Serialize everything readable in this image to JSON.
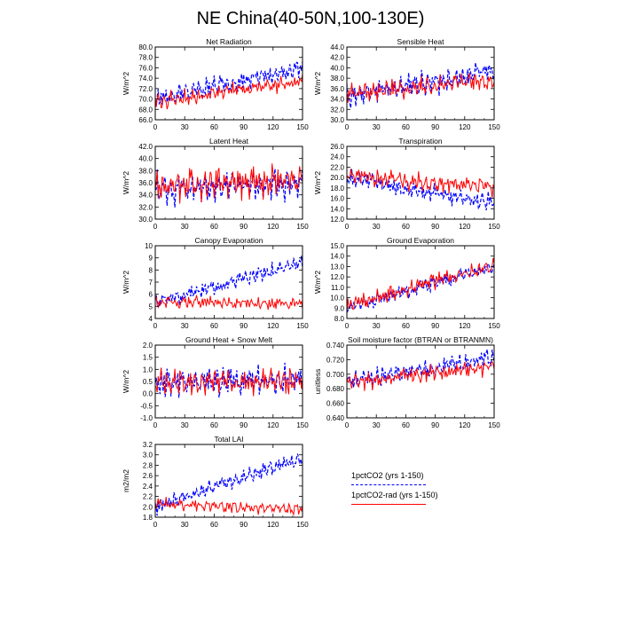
{
  "figure": {
    "title": "NE China(40-50N,100-130E)"
  },
  "legend": {
    "items": [
      {
        "label": "1pctCO2 (yrs 1-150)",
        "color": "#0000ff",
        "style": "dashed"
      },
      {
        "label": "1pctCO2-rad (yrs 1-150)",
        "color": "#ff0000",
        "style": "solid"
      }
    ]
  },
  "chart_data": [
    {
      "type": "line",
      "title": "Net Radiation",
      "ylabel": "W/m^2",
      "xlim": [
        0,
        150
      ],
      "xticks": [
        0,
        30,
        60,
        90,
        120,
        150
      ],
      "ylim": [
        66,
        80
      ],
      "yticks": [
        "66.0",
        "68.0",
        "70.0",
        "72.0",
        "74.0",
        "76.0",
        "78.0",
        "80.0"
      ],
      "series": [
        {
          "name": "1pctCO2 (yrs 1-150)",
          "color": "#0000ff",
          "style": "dashed",
          "start": 70.0,
          "end": 76.0,
          "amp": 1.4,
          "noise": 1.1,
          "seed": 11
        },
        {
          "name": "1pctCO2-rad (yrs 1-150)",
          "color": "#ff0000",
          "style": "solid",
          "start": 69.5,
          "end": 73.5,
          "amp": 1.1,
          "noise": 0.9,
          "seed": 12
        }
      ]
    },
    {
      "type": "line",
      "title": "Sensible Heat",
      "ylabel": "W/m^2",
      "xlim": [
        0,
        150
      ],
      "xticks": [
        0,
        30,
        60,
        90,
        120,
        150
      ],
      "ylim": [
        30,
        44
      ],
      "yticks": [
        "30.0",
        "32.0",
        "34.0",
        "36.0",
        "38.0",
        "40.0",
        "42.0",
        "44.0"
      ],
      "series": [
        {
          "name": "1pctCO2 (yrs 1-150)",
          "color": "#0000ff",
          "style": "dashed",
          "start": 34.5,
          "end": 39.5,
          "amp": 2.0,
          "noise": 1.3,
          "seed": 21
        },
        {
          "name": "1pctCO2-rad (yrs 1-150)",
          "color": "#ff0000",
          "style": "solid",
          "start": 35.0,
          "end": 37.5,
          "amp": 1.5,
          "noise": 1.0,
          "seed": 22
        }
      ]
    },
    {
      "type": "line",
      "title": "Latent Heat",
      "ylabel": "W/m^2",
      "xlim": [
        0,
        150
      ],
      "xticks": [
        0,
        30,
        60,
        90,
        120,
        150
      ],
      "ylim": [
        30,
        42
      ],
      "yticks": [
        "30.0",
        "32.0",
        "34.0",
        "36.0",
        "38.0",
        "40.0",
        "42.0"
      ],
      "series": [
        {
          "name": "1pctCO2 (yrs 1-150)",
          "color": "#0000ff",
          "style": "dashed",
          "start": 35.0,
          "end": 36.0,
          "amp": 2.0,
          "noise": 1.4,
          "seed": 31
        },
        {
          "name": "1pctCO2-rad (yrs 1-150)",
          "color": "#ff0000",
          "style": "solid",
          "start": 35.5,
          "end": 36.5,
          "amp": 2.2,
          "noise": 1.3,
          "seed": 32
        }
      ]
    },
    {
      "type": "line",
      "title": "Transpiration",
      "ylabel": "W/m^2",
      "xlim": [
        0,
        150
      ],
      "xticks": [
        0,
        30,
        60,
        90,
        120,
        150
      ],
      "ylim": [
        12,
        26
      ],
      "yticks": [
        "12.0",
        "14.0",
        "16.0",
        "18.0",
        "20.0",
        "22.0",
        "24.0",
        "26.0"
      ],
      "series": [
        {
          "name": "1pctCO2 (yrs 1-150)",
          "color": "#0000ff",
          "style": "dashed",
          "start": 20.0,
          "end": 15.0,
          "amp": 1.3,
          "noise": 1.0,
          "seed": 41
        },
        {
          "name": "1pctCO2-rad (yrs 1-150)",
          "color": "#ff0000",
          "style": "solid",
          "start": 20.5,
          "end": 18.0,
          "amp": 1.4,
          "noise": 1.0,
          "seed": 42
        }
      ]
    },
    {
      "type": "line",
      "title": "Canopy Evaporation",
      "ylabel": "W/m^2",
      "xlim": [
        0,
        150
      ],
      "xticks": [
        0,
        30,
        60,
        90,
        120,
        150
      ],
      "ylim": [
        4,
        10
      ],
      "yticks": [
        "4",
        "5",
        "6",
        "7",
        "8",
        "9",
        "10"
      ],
      "series": [
        {
          "name": "1pctCO2 (yrs 1-150)",
          "color": "#0000ff",
          "style": "dashed",
          "start": 5.3,
          "end": 8.6,
          "amp": 0.45,
          "noise": 0.35,
          "seed": 51
        },
        {
          "name": "1pctCO2-rad (yrs 1-150)",
          "color": "#ff0000",
          "style": "solid",
          "start": 5.4,
          "end": 5.2,
          "amp": 0.35,
          "noise": 0.3,
          "seed": 52
        }
      ]
    },
    {
      "type": "line",
      "title": "Ground Evaporation",
      "ylabel": "W/m^2",
      "xlim": [
        0,
        150
      ],
      "xticks": [
        0,
        30,
        60,
        90,
        120,
        150
      ],
      "ylim": [
        8,
        15
      ],
      "yticks": [
        "8.0",
        "9.0",
        "10.0",
        "11.0",
        "12.0",
        "13.0",
        "14.0",
        "15.0"
      ],
      "series": [
        {
          "name": "1pctCO2 (yrs 1-150)",
          "color": "#0000ff",
          "style": "dashed",
          "start": 9.0,
          "end": 13.0,
          "amp": 0.5,
          "noise": 0.4,
          "seed": 61
        },
        {
          "name": "1pctCO2-rad (yrs 1-150)",
          "color": "#ff0000",
          "style": "solid",
          "start": 9.2,
          "end": 13.2,
          "amp": 0.55,
          "noise": 0.45,
          "seed": 62
        }
      ]
    },
    {
      "type": "line",
      "title": "Ground Heat + Snow Melt",
      "ylabel": "W/m^2",
      "xlim": [
        0,
        150
      ],
      "xticks": [
        0,
        30,
        60,
        90,
        120,
        150
      ],
      "ylim": [
        -1.0,
        2.0
      ],
      "yticks": [
        "-1.0",
        "-0.5",
        "0.0",
        "0.5",
        "1.0",
        "1.5",
        "2.0"
      ],
      "series": [
        {
          "name": "1pctCO2 (yrs 1-150)",
          "color": "#0000ff",
          "style": "dashed",
          "start": 0.5,
          "end": 0.5,
          "amp": 0.45,
          "noise": 0.35,
          "seed": 71
        },
        {
          "name": "1pctCO2-rad (yrs 1-150)",
          "color": "#ff0000",
          "style": "solid",
          "start": 0.5,
          "end": 0.5,
          "amp": 0.45,
          "noise": 0.3,
          "seed": 72
        }
      ]
    },
    {
      "type": "line",
      "title": "Soil moisture factor (BTRAN or BTRANMN)",
      "ylabel": "unitless",
      "xlim": [
        0,
        150
      ],
      "xticks": [
        0,
        30,
        60,
        90,
        120,
        150
      ],
      "ylim": [
        0.64,
        0.74
      ],
      "yticks": [
        "0.640",
        "0.660",
        "0.680",
        "0.700",
        "0.720",
        "0.740"
      ],
      "series": [
        {
          "name": "1pctCO2 (yrs 1-150)",
          "color": "#0000ff",
          "style": "dashed",
          "start": 0.69,
          "end": 0.722,
          "amp": 0.01,
          "noise": 0.007,
          "seed": 81
        },
        {
          "name": "1pctCO2-rad (yrs 1-150)",
          "color": "#ff0000",
          "style": "solid",
          "start": 0.688,
          "end": 0.71,
          "amp": 0.009,
          "noise": 0.006,
          "seed": 82
        }
      ]
    },
    {
      "type": "line",
      "title": "Total LAI",
      "ylabel": "m2/m2",
      "xlim": [
        0,
        150
      ],
      "xticks": [
        0,
        30,
        60,
        90,
        120,
        150
      ],
      "ylim": [
        1.8,
        3.2
      ],
      "yticks": [
        "1.8",
        "2.0",
        "2.2",
        "2.4",
        "2.6",
        "2.8",
        "3.0",
        "3.2"
      ],
      "series": [
        {
          "name": "1pctCO2 (yrs 1-150)",
          "color": "#0000ff",
          "style": "dashed",
          "start": 2.0,
          "end": 2.95,
          "amp": 0.12,
          "noise": 0.08,
          "seed": 91
        },
        {
          "name": "1pctCO2-rad (yrs 1-150)",
          "color": "#ff0000",
          "style": "solid",
          "start": 2.05,
          "end": 1.95,
          "amp": 0.09,
          "noise": 0.06,
          "seed": 92
        }
      ]
    }
  ]
}
